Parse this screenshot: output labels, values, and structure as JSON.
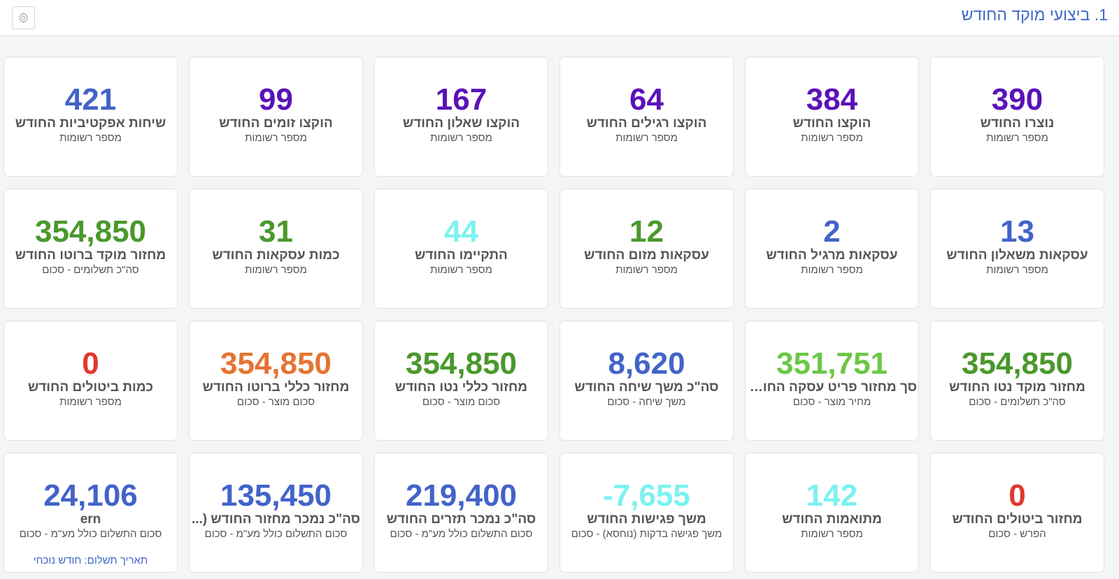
{
  "header": {
    "title": "1. ביצועי מוקד החודש",
    "settings_icon": "gear-icon"
  },
  "colors": {
    "blue": "#4263c9",
    "purple": "#5a12b8",
    "green": "#4a982c",
    "light_green": "#6cc745",
    "cyan": "#7cf2f0",
    "red": "#e0382a",
    "orange": "#e67332"
  },
  "cards": [
    {
      "value": "390",
      "title": "נוצרו החודש",
      "sub": "מספר רשומות",
      "color": "#5a12b8"
    },
    {
      "value": "384",
      "title": "הוקצו החודש",
      "sub": "מספר רשומות",
      "color": "#5a12b8"
    },
    {
      "value": "64",
      "title": "הוקצו רגילים החודש",
      "sub": "מספר רשומות",
      "color": "#5a12b8"
    },
    {
      "value": "167",
      "title": "הוקצו שאלון החודש",
      "sub": "מספר רשומות",
      "color": "#5a12b8"
    },
    {
      "value": "99",
      "title": "הוקצו זומים החודש",
      "sub": "מספר רשומות",
      "color": "#5a12b8"
    },
    {
      "value": "421",
      "title": "שיחות אפקטיביות החודש",
      "sub": "מספר רשומות",
      "color": "#4263c9"
    },
    {
      "value": "13",
      "title": "עסקאות משאלון החודש",
      "sub": "מספר רשומות",
      "color": "#4263c9"
    },
    {
      "value": "2",
      "title": "עסקאות מרגיל החודש",
      "sub": "מספר רשומות",
      "color": "#4263c9"
    },
    {
      "value": "12",
      "title": "עסקאות מזום החודש",
      "sub": "מספר רשומות",
      "color": "#4a982c"
    },
    {
      "value": "44",
      "title": "התקיימו החודש",
      "sub": "מספר רשומות",
      "color": "#7cf2f0"
    },
    {
      "value": "31",
      "title": "כמות עסקאות החודש",
      "sub": "מספר רשומות",
      "color": "#4a982c"
    },
    {
      "value": "354,850",
      "title": "מחזור מוקד ברוטו החודש",
      "sub": "סה\"כ תשלומים - סכום",
      "color": "#4a982c"
    },
    {
      "value": "354,850",
      "title": "מחזור מוקד נטו החודש",
      "sub": "סה\"כ תשלומים - סכום",
      "color": "#4a982c"
    },
    {
      "value": "351,751",
      "title": "סך מחזור פריט עסקה החודש",
      "sub": "מחיר מוצר - סכום",
      "color": "#6cc745"
    },
    {
      "value": "8,620",
      "title": "סה\"כ משך שיחה החודש",
      "sub": "משך שיחה - סכום",
      "color": "#4263c9"
    },
    {
      "value": "354,850",
      "title": "מחזור כללי נטו החודש",
      "sub": "סכום מוצר - סכום",
      "color": "#4a982c"
    },
    {
      "value": "354,850",
      "title": "מחזור כללי ברוטו החודש",
      "sub": "סכום מוצר - סכום",
      "color": "#e67332"
    },
    {
      "value": "0",
      "title": "כמות ביטולים החודש",
      "sub": "מספר רשומות",
      "color": "#e0382a"
    },
    {
      "value": "0",
      "title": "מחזור ביטולים החודש",
      "sub": "הפרש - סכום",
      "color": "#e0382a"
    },
    {
      "value": "142",
      "title": "מתואמות החודש",
      "sub": "מספר רשומות",
      "color": "#7cf2f0"
    },
    {
      "value": "-7,655",
      "title": "משך פגישות החודש",
      "sub": "משך פגישה בדקות (נוחסא) - סכום",
      "color": "#7cf2f0"
    },
    {
      "value": "219,400",
      "title": "סה\"כ נמכר תזרים החודש",
      "sub": "סכום התשלום כולל מע\"מ - סכום",
      "color": "#4263c9"
    },
    {
      "value": "135,450",
      "title": "סה\"כ נמכר מחזור החודש (...",
      "sub": "סכום התשלום כולל מע\"מ - סכום",
      "color": "#4263c9"
    },
    {
      "value": "24,106",
      "title": "ern",
      "sub": "סכום התשלום כולל מע\"מ - סכום",
      "color": "#4263c9",
      "link": "תאריך תשלום: חודש נוכחי"
    }
  ]
}
